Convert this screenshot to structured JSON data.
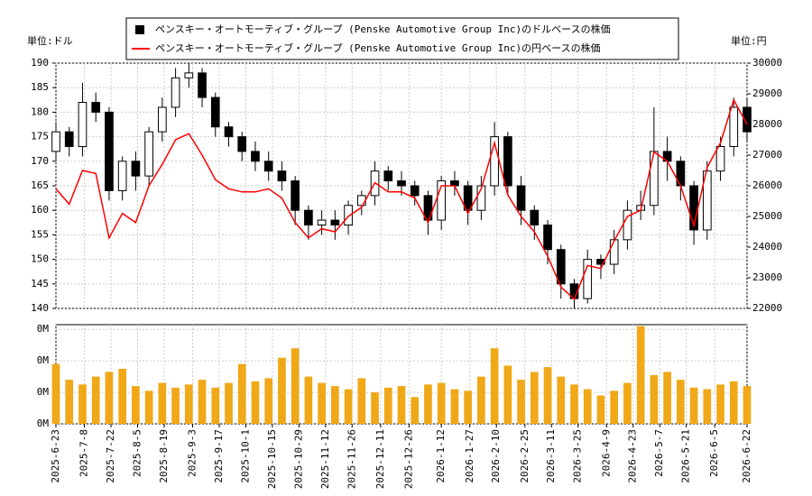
{
  "chart_data": {
    "type": "candlestick",
    "ylabel": "単位:ドル",
    "y2label": "単位:円",
    "grid": true,
    "xlim": [
      "2025-6-23",
      "2026-6-22"
    ],
    "xticks": [
      "2025-6-23",
      "2025-7-8",
      "2025-7-22",
      "2025-8-5",
      "2025-8-19",
      "2025-9-3",
      "2025-9-17",
      "2025-10-1",
      "2025-10-15",
      "2025-10-29",
      "2025-11-12",
      "2025-11-26",
      "2025-12-11",
      "2025-12-26",
      "2026-1-12",
      "2026-1-27",
      "2026-2-10",
      "2026-2-25",
      "2026-3-11",
      "2026-3-25",
      "2026-4-9",
      "2026-4-23",
      "2026-5-7",
      "2026-5-21",
      "2026-6-5",
      "2026-6-22"
    ],
    "ylim": [
      140,
      190
    ],
    "yticks": [
      140,
      145,
      150,
      155,
      160,
      165,
      170,
      175,
      180,
      185,
      190
    ],
    "y2lim": [
      22000,
      30000
    ],
    "y2ticks": [
      22000,
      23000,
      24000,
      25000,
      26000,
      27000,
      28000,
      29000,
      30000
    ],
    "x": [
      "2025-6-23",
      "2025-6-30",
      "2025-7-7",
      "2025-7-14",
      "2025-7-21",
      "2025-7-28",
      "2025-8-4",
      "2025-8-11",
      "2025-8-18",
      "2025-8-25",
      "2025-9-1",
      "2025-9-8",
      "2025-9-15",
      "2025-9-22",
      "2025-9-29",
      "2025-10-6",
      "2025-10-13",
      "2025-10-20",
      "2025-10-27",
      "2025-11-3",
      "2025-11-10",
      "2025-11-17",
      "2025-11-24",
      "2025-12-1",
      "2025-12-8",
      "2025-12-15",
      "2025-12-22",
      "2025-12-29",
      "2026-1-5",
      "2026-1-12",
      "2026-1-19",
      "2026-1-26",
      "2026-2-2",
      "2026-2-9",
      "2026-2-16",
      "2026-2-23",
      "2026-3-2",
      "2026-3-9",
      "2026-3-16",
      "2026-3-23",
      "2026-3-30",
      "2026-4-6",
      "2026-4-13",
      "2026-4-20",
      "2026-4-27",
      "2026-5-4",
      "2026-5-11",
      "2026-5-18",
      "2026-5-25",
      "2026-6-1",
      "2026-6-8",
      "2026-6-15",
      "2026-6-22"
    ],
    "series": [
      {
        "name": "ペンスキー・オートモーティブ・グループ (Penske Automotive Group Inc)のドルベースの株価",
        "color": "#000000",
        "open": [
          172,
          176,
          173,
          182,
          180,
          164,
          170,
          167,
          176,
          181,
          187,
          188,
          183,
          177,
          175,
          172,
          170,
          168,
          166,
          160,
          157,
          158,
          157,
          161,
          163,
          168,
          166,
          165,
          163,
          158,
          166,
          165,
          160,
          165,
          175,
          165,
          160,
          157,
          152,
          145,
          142,
          150,
          149,
          154,
          160,
          161,
          172,
          170,
          165,
          156,
          168,
          173,
          181
        ],
        "high": [
          178,
          177,
          186,
          184,
          181,
          171,
          172,
          177,
          183,
          189,
          190,
          189,
          184,
          178,
          176,
          174,
          172,
          170,
          167,
          161,
          160,
          160,
          162,
          164,
          170,
          169,
          168,
          166,
          164,
          167,
          168,
          166,
          167,
          178,
          176,
          167,
          161,
          158,
          153,
          146,
          152,
          151,
          156,
          162,
          164,
          181,
          175,
          171,
          166,
          170,
          175,
          183,
          183
        ],
        "low": [
          170,
          171,
          171,
          178,
          162,
          162,
          164,
          165,
          174,
          179,
          185,
          181,
          175,
          173,
          170,
          168,
          166,
          164,
          157,
          154,
          155,
          154,
          155,
          159,
          161,
          164,
          163,
          161,
          155,
          156,
          163,
          157,
          158,
          163,
          163,
          157,
          154,
          149,
          142,
          140,
          141,
          146,
          147,
          152,
          158,
          159,
          166,
          162,
          153,
          154,
          166,
          171,
          174
        ],
        "close": [
          176,
          173,
          182,
          180,
          164,
          170,
          167,
          176,
          181,
          187,
          188,
          183,
          177,
          175,
          172,
          170,
          168,
          166,
          160,
          157,
          158,
          157,
          161,
          163,
          168,
          166,
          165,
          163,
          158,
          166,
          165,
          160,
          165,
          175,
          165,
          160,
          157,
          152,
          145,
          142,
          150,
          149,
          154,
          160,
          161,
          172,
          170,
          165,
          156,
          168,
          173,
          181,
          176
        ]
      },
      {
        "name": "ペンスキー・オートモーティブ・グループ (Penske Automotive Group Inc)の円ベースの株価",
        "color": "#ff0000",
        "axis": "y2",
        "values": [
          25900,
          25400,
          26500,
          26400,
          24300,
          25100,
          24800,
          26000,
          26700,
          27500,
          27700,
          27000,
          26200,
          25900,
          25800,
          25800,
          25900,
          25600,
          24800,
          24300,
          24600,
          24500,
          25000,
          25300,
          26100,
          25800,
          25800,
          25600,
          24800,
          26000,
          26000,
          25100,
          25900,
          27400,
          25700,
          25000,
          24500,
          23700,
          22700,
          22300,
          23400,
          23300,
          24200,
          25000,
          25200,
          27100,
          26800,
          26000,
          24700,
          26600,
          27400,
          28800,
          28000
        ]
      }
    ],
    "volume": {
      "color": "#f0a818",
      "ylim": [
        0,
        630000
      ],
      "yticks": [
        {
          "value": 0,
          "label": "0M"
        },
        {
          "value": 200000,
          "label": "0M"
        },
        {
          "value": 400000,
          "label": "0M"
        },
        {
          "value": 600000,
          "label": "0M"
        }
      ],
      "values": [
        380000,
        280000,
        250000,
        300000,
        330000,
        350000,
        240000,
        210000,
        260000,
        230000,
        250000,
        280000,
        230000,
        260000,
        380000,
        270000,
        290000,
        420000,
        480000,
        300000,
        260000,
        240000,
        220000,
        290000,
        200000,
        230000,
        240000,
        170000,
        250000,
        260000,
        220000,
        210000,
        300000,
        480000,
        370000,
        280000,
        330000,
        360000,
        300000,
        250000,
        220000,
        180000,
        210000,
        260000,
        620000,
        310000,
        330000,
        280000,
        230000,
        220000,
        250000,
        270000,
        240000
      ]
    }
  }
}
